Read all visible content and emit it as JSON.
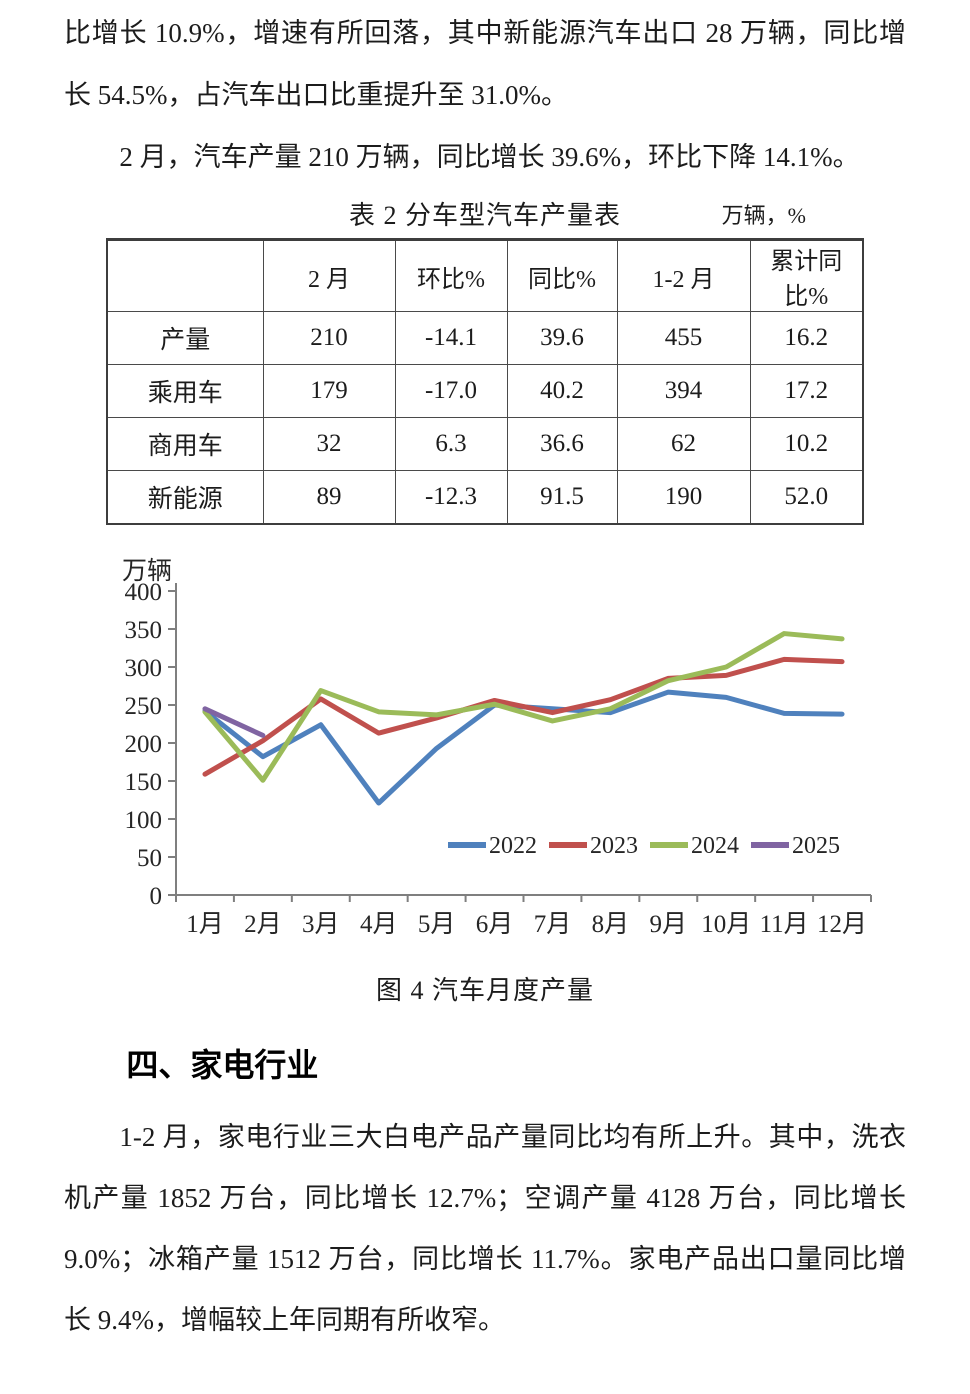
{
  "page": {
    "paragraph1": "比增长 10.9%，增速有所回落，其中新能源汽车出口 28 万辆，同比增长 54.5%，占汽车出口比重提升至 31.0%。",
    "paragraph2": "2 月，汽车产量 210 万辆，同比增长 39.6%，环比下降 14.1%。",
    "table_title": "表 2 分车型汽车产量表",
    "table_unit": "万辆，%",
    "figure_caption": "图 4 汽车月度产量",
    "section_heading": "四、家电行业",
    "paragraph3": "1-2 月，家电行业三大白电产品产量同比均有所上升。其中，洗衣机产量 1852 万台，同比增长 12.7%；空调产量 4128 万台，同比增长 9.0%；冰箱产量 1512 万台，同比增长 11.7%。家电产品出口量同比增长 9.4%，增幅较上年同期有所收窄。"
  },
  "table": {
    "headers": [
      "",
      "2 月",
      "环比%",
      "同比%",
      "1-2 月",
      "累计同比%"
    ],
    "rows": [
      [
        "产量",
        "210",
        "-14.1",
        "39.6",
        "455",
        "16.2"
      ],
      [
        "乘用车",
        "179",
        "-17.0",
        "40.2",
        "394",
        "17.2"
      ],
      [
        "商用车",
        "32",
        "6.3",
        "36.6",
        "62",
        "10.2"
      ],
      [
        "新能源",
        "89",
        "-12.3",
        "91.5",
        "190",
        "52.0"
      ]
    ]
  },
  "chart_data": {
    "type": "line",
    "title": "图 4 汽车月度产量",
    "unit_label": "万辆",
    "xlabel": "",
    "ylabel": "万辆",
    "categories": [
      "1月",
      "2月",
      "3月",
      "4月",
      "5月",
      "6月",
      "7月",
      "8月",
      "9月",
      "10月",
      "11月",
      "12月"
    ],
    "series": [
      {
        "name": "2022",
        "color": "#4F81BD",
        "values": [
          242,
          182,
          224,
          121,
          193,
          250,
          245,
          240,
          267,
          260,
          239,
          238
        ]
      },
      {
        "name": "2023",
        "color": "#C0504D",
        "values": [
          159,
          203,
          258,
          213,
          233,
          256,
          240,
          257,
          285,
          289,
          310,
          307
        ]
      },
      {
        "name": "2024",
        "color": "#9BBB59",
        "values": [
          241,
          151,
          269,
          241,
          237,
          251,
          229,
          245,
          282,
          300,
          344,
          337
        ]
      },
      {
        "name": "2025",
        "color": "#8064A2",
        "values": [
          245,
          210
        ]
      }
    ],
    "ylim": [
      0,
      400
    ],
    "ytick_step": 50,
    "grid": false,
    "legend_position": "inside-bottom",
    "axis_color": "#7f7f7f",
    "text_color": "#262626"
  }
}
